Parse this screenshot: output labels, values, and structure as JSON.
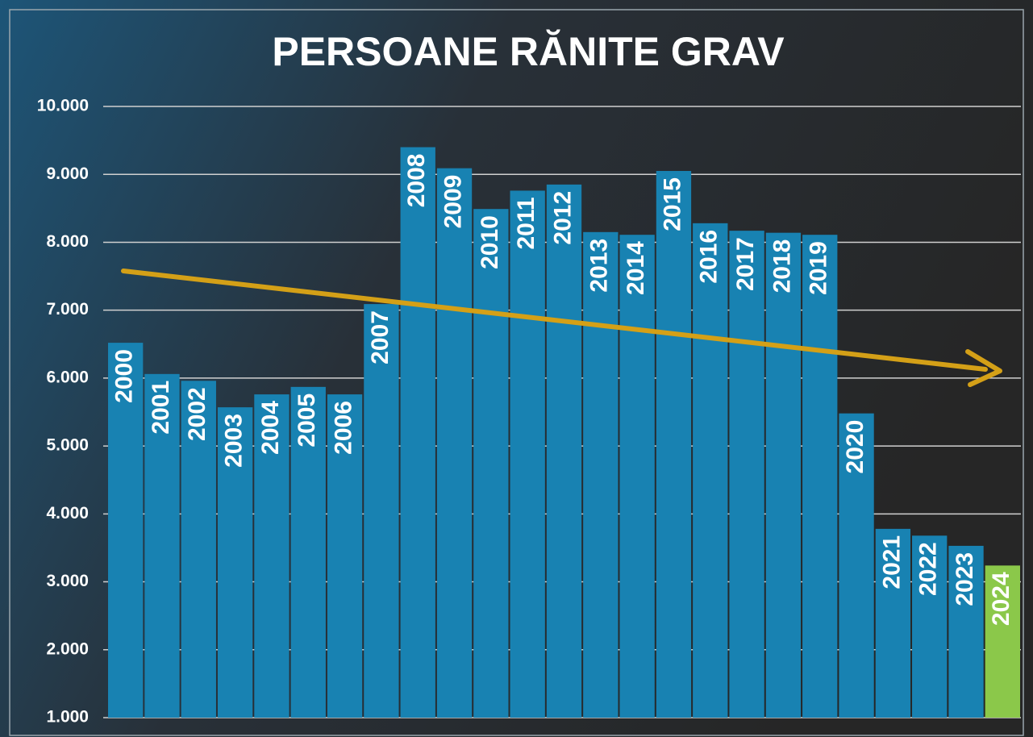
{
  "chart_data": {
    "type": "bar",
    "title": "PERSOANE RĂNITE GRAV",
    "categories": [
      "2000",
      "2001",
      "2002",
      "2003",
      "2004",
      "2005",
      "2006",
      "2007",
      "2008",
      "2009",
      "2010",
      "2011",
      "2012",
      "2013",
      "2014",
      "2015",
      "2016",
      "2017",
      "2018",
      "2019",
      "2020",
      "2021",
      "2022",
      "2023",
      "2024"
    ],
    "values": [
      6520,
      6060,
      5960,
      5570,
      5760,
      5870,
      5760,
      7090,
      9400,
      9090,
      8490,
      8760,
      8850,
      8150,
      8110,
      9050,
      8280,
      8170,
      8140,
      8110,
      5480,
      3780,
      3680,
      3530,
      3240
    ],
    "colors": [
      "#1882b2",
      "#1882b2",
      "#1882b2",
      "#1882b2",
      "#1882b2",
      "#1882b2",
      "#1882b2",
      "#1882b2",
      "#1882b2",
      "#1882b2",
      "#1882b2",
      "#1882b2",
      "#1882b2",
      "#1882b2",
      "#1882b2",
      "#1882b2",
      "#1882b2",
      "#1882b2",
      "#1882b2",
      "#1882b2",
      "#1882b2",
      "#1882b2",
      "#1882b2",
      "#1882b2",
      "#8bc84a"
    ],
    "ylim": [
      1000,
      10000
    ],
    "yticks": [
      {
        "value": 1000,
        "label": "1.000"
      },
      {
        "value": 2000,
        "label": "2.000"
      },
      {
        "value": 3000,
        "label": "3.000"
      },
      {
        "value": 4000,
        "label": "4.000"
      },
      {
        "value": 5000,
        "label": "5.000"
      },
      {
        "value": 6000,
        "label": "6.000"
      },
      {
        "value": 7000,
        "label": "7.000"
      },
      {
        "value": 8000,
        "label": "8.000"
      },
      {
        "value": 9000,
        "label": "9.000"
      },
      {
        "value": 10000,
        "label": "10.000"
      }
    ],
    "grid": true
  }
}
